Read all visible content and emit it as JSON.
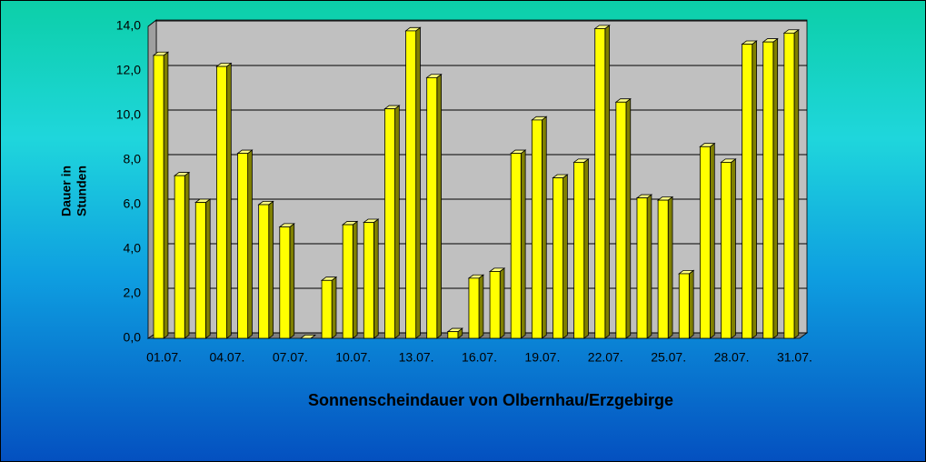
{
  "chart_data": {
    "type": "bar3d",
    "title": "Sonnenscheindauer von Olbernhau/Erzgebirge",
    "y_label": [
      "Dauer in",
      "Stunden"
    ],
    "categories": [
      "01.07.",
      null,
      null,
      "04.07.",
      null,
      null,
      "07.07.",
      null,
      null,
      "10.07.",
      null,
      null,
      "13.07.",
      null,
      null,
      "16.07.",
      null,
      null,
      "19.07.",
      null,
      null,
      "22.07.",
      null,
      null,
      "25.07.",
      null,
      null,
      "28.07.",
      null,
      null,
      "31.07."
    ],
    "values": [
      12.7,
      7.3,
      6.1,
      12.2,
      8.3,
      6.0,
      5.0,
      0,
      2.6,
      5.1,
      5.2,
      10.3,
      13.8,
      11.7,
      0.3,
      2.7,
      3.0,
      8.3,
      9.8,
      7.2,
      7.9,
      13.9,
      10.6,
      6.3,
      6.2,
      2.9,
      8.6,
      7.9,
      13.2,
      13.3,
      13.7
    ],
    "color": "#ffff00",
    "ylim": [
      0,
      14
    ],
    "yticks": [
      {
        "value": 0,
        "label": "0,0"
      },
      {
        "value": 2,
        "label": "2,0"
      },
      {
        "value": 4,
        "label": "4,0"
      },
      {
        "value": 6,
        "label": "6,0"
      },
      {
        "value": 8,
        "label": "8,0"
      },
      {
        "value": 10,
        "label": "10,0"
      },
      {
        "value": 12,
        "label": "12,0"
      },
      {
        "value": 14,
        "label": "14,0"
      }
    ],
    "grid": true
  }
}
